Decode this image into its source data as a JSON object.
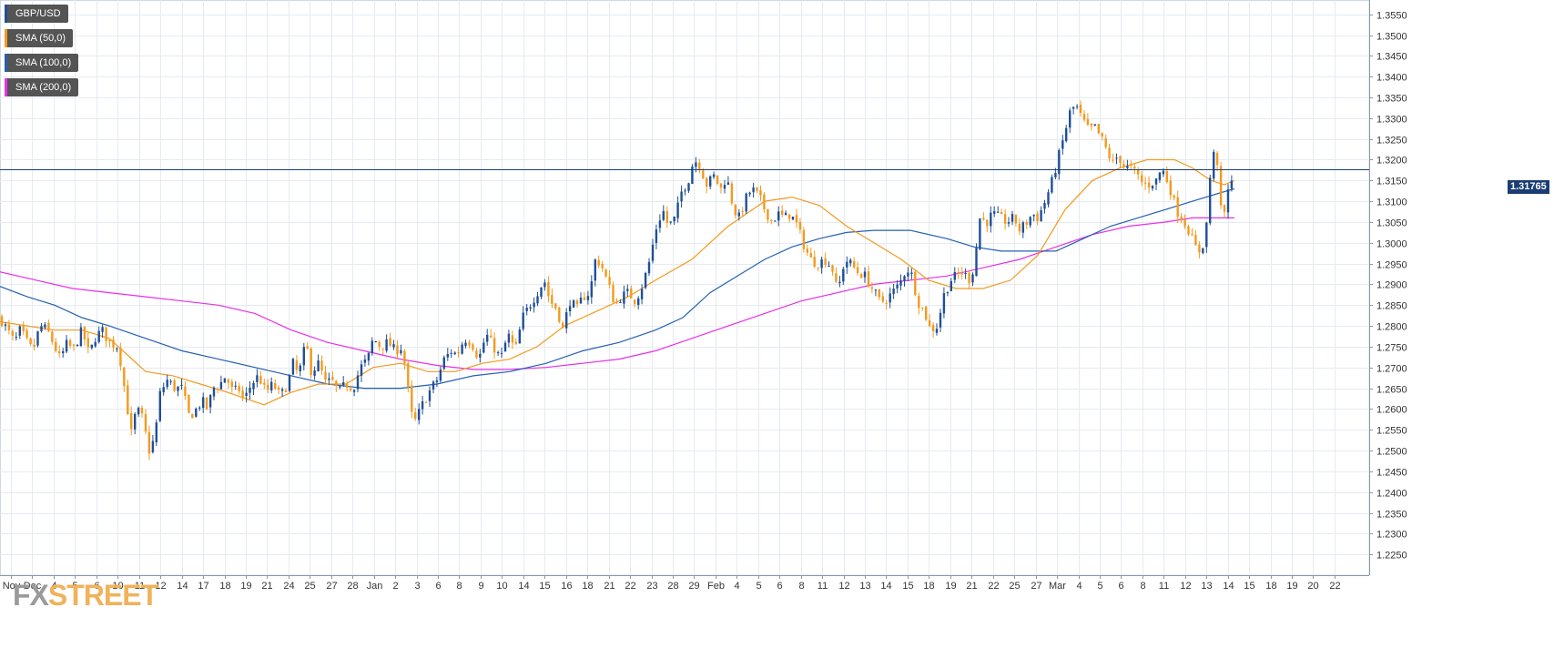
{
  "chart_data": {
    "type": "candlestick",
    "symbol": "GBP/USD",
    "last_price": "1.31765",
    "last_price_value": 1.31765,
    "ylim": [
      1.22,
      1.358
    ],
    "y_ticks": [
      "1.3550",
      "1.3500",
      "1.3450",
      "1.3400",
      "1.3350",
      "1.3300",
      "1.3250",
      "1.3200",
      "1.3150",
      "1.3100",
      "1.3050",
      "1.3000",
      "1.2950",
      "1.2900",
      "1.2850",
      "1.2800",
      "1.2750",
      "1.2700",
      "1.2650",
      "1.2600",
      "1.2550",
      "1.2500",
      "1.2450",
      "1.2400",
      "1.2350",
      "1.2300",
      "1.2250"
    ],
    "x_ticks": [
      "Nov",
      "Dec",
      "4",
      "5",
      "6",
      "10",
      "11",
      "12",
      "14",
      "17",
      "18",
      "19",
      "21",
      "24",
      "25",
      "27",
      "28",
      "Jan",
      "2",
      "3",
      "6",
      "8",
      "9",
      "10",
      "14",
      "15",
      "16",
      "18",
      "21",
      "22",
      "23",
      "28",
      "29",
      "Feb",
      "4",
      "5",
      "6",
      "8",
      "11",
      "12",
      "13",
      "14",
      "15",
      "18",
      "19",
      "21",
      "22",
      "25",
      "27",
      "Mar",
      "4",
      "5",
      "6",
      "8",
      "11",
      "12",
      "13",
      "14",
      "15",
      "18",
      "19",
      "20",
      "22"
    ],
    "grid": true,
    "legend_position": "top-left",
    "series": [
      {
        "name": "GBP/USD",
        "color": "#1f4f99"
      },
      {
        "name": "SMA (50,0)",
        "color": "#f39a1e"
      },
      {
        "name": "SMA (100,0)",
        "color": "#2360b0"
      },
      {
        "name": "SMA (200,0)",
        "color": "#e830e8"
      }
    ],
    "close_path": [
      [
        0,
        1.282
      ],
      [
        8,
        1.279
      ],
      [
        16,
        1.276
      ],
      [
        22,
        1.279
      ],
      [
        30,
        1.276
      ],
      [
        36,
        1.274
      ],
      [
        44,
        1.28
      ],
      [
        52,
        1.279
      ],
      [
        58,
        1.276
      ],
      [
        66,
        1.272
      ],
      [
        74,
        1.276
      ],
      [
        80,
        1.274
      ],
      [
        90,
        1.279
      ],
      [
        98,
        1.273
      ],
      [
        104,
        1.277
      ],
      [
        112,
        1.279
      ],
      [
        120,
        1.276
      ],
      [
        130,
        1.275
      ],
      [
        138,
        1.263
      ],
      [
        144,
        1.254
      ],
      [
        150,
        1.26
      ],
      [
        156,
        1.258
      ],
      [
        164,
        1.25
      ],
      [
        170,
        1.253
      ],
      [
        176,
        1.264
      ],
      [
        184,
        1.267
      ],
      [
        192,
        1.265
      ],
      [
        200,
        1.265
      ],
      [
        208,
        1.258
      ],
      [
        216,
        1.26
      ],
      [
        222,
        1.262
      ],
      [
        228,
        1.26
      ],
      [
        234,
        1.265
      ],
      [
        242,
        1.266
      ],
      [
        248,
        1.268
      ],
      [
        256,
        1.264
      ],
      [
        262,
        1.265
      ],
      [
        268,
        1.262
      ],
      [
        276,
        1.266
      ],
      [
        284,
        1.268
      ],
      [
        292,
        1.264
      ],
      [
        300,
        1.266
      ],
      [
        308,
        1.263
      ],
      [
        316,
        1.266
      ],
      [
        322,
        1.271
      ],
      [
        328,
        1.268
      ],
      [
        336,
        1.276
      ],
      [
        342,
        1.269
      ],
      [
        350,
        1.271
      ],
      [
        358,
        1.266
      ],
      [
        364,
        1.267
      ],
      [
        372,
        1.264
      ],
      [
        380,
        1.266
      ],
      [
        388,
        1.265
      ],
      [
        396,
        1.27
      ],
      [
        404,
        1.272
      ],
      [
        410,
        1.277
      ],
      [
        418,
        1.275
      ],
      [
        426,
        1.276
      ],
      [
        434,
        1.274
      ],
      [
        442,
        1.275
      ],
      [
        448,
        1.265
      ],
      [
        454,
        1.256
      ],
      [
        460,
        1.259
      ],
      [
        466,
        1.262
      ],
      [
        474,
        1.265
      ],
      [
        480,
        1.267
      ],
      [
        488,
        1.272
      ],
      [
        496,
        1.274
      ],
      [
        502,
        1.273
      ],
      [
        510,
        1.277
      ],
      [
        518,
        1.276
      ],
      [
        526,
        1.272
      ],
      [
        534,
        1.278
      ],
      [
        542,
        1.275
      ],
      [
        550,
        1.272
      ],
      [
        558,
        1.278
      ],
      [
        566,
        1.274
      ],
      [
        574,
        1.282
      ],
      [
        582,
        1.285
      ],
      [
        590,
        1.288
      ],
      [
        598,
        1.291
      ],
      [
        604,
        1.286
      ],
      [
        612,
        1.284
      ],
      [
        618,
        1.279
      ],
      [
        626,
        1.286
      ],
      [
        634,
        1.284
      ],
      [
        640,
        1.287
      ],
      [
        648,
        1.288
      ],
      [
        654,
        1.296
      ],
      [
        660,
        1.295
      ],
      [
        668,
        1.29
      ],
      [
        676,
        1.285
      ],
      [
        682,
        1.287
      ],
      [
        690,
        1.288
      ],
      [
        698,
        1.286
      ],
      [
        706,
        1.29
      ],
      [
        714,
        1.296
      ],
      [
        720,
        1.303
      ],
      [
        728,
        1.308
      ],
      [
        734,
        1.304
      ],
      [
        742,
        1.306
      ],
      [
        748,
        1.312
      ],
      [
        756,
        1.315
      ],
      [
        762,
        1.32
      ],
      [
        768,
        1.319
      ],
      [
        776,
        1.314
      ],
      [
        784,
        1.316
      ],
      [
        792,
        1.313
      ],
      [
        798,
        1.316
      ],
      [
        806,
        1.308
      ],
      [
        812,
        1.306
      ],
      [
        820,
        1.311
      ],
      [
        826,
        1.313
      ],
      [
        834,
        1.311
      ],
      [
        840,
        1.308
      ],
      [
        848,
        1.305
      ],
      [
        854,
        1.307
      ],
      [
        862,
        1.306
      ],
      [
        868,
        1.307
      ],
      [
        876,
        1.304
      ],
      [
        882,
        1.3
      ],
      [
        890,
        1.296
      ],
      [
        898,
        1.295
      ],
      [
        906,
        1.296
      ],
      [
        914,
        1.294
      ],
      [
        920,
        1.288
      ],
      [
        928,
        1.296
      ],
      [
        934,
        1.295
      ],
      [
        942,
        1.293
      ],
      [
        950,
        1.292
      ],
      [
        958,
        1.289
      ],
      [
        966,
        1.286
      ],
      [
        972,
        1.286
      ],
      [
        980,
        1.288
      ],
      [
        988,
        1.29
      ],
      [
        996,
        1.294
      ],
      [
        1002,
        1.292
      ],
      [
        1008,
        1.286
      ],
      [
        1016,
        1.283
      ],
      [
        1022,
        1.279
      ],
      [
        1030,
        1.28
      ],
      [
        1036,
        1.287
      ],
      [
        1044,
        1.291
      ],
      [
        1050,
        1.292
      ],
      [
        1058,
        1.293
      ],
      [
        1064,
        1.291
      ],
      [
        1070,
        1.294
      ],
      [
        1076,
        1.306
      ],
      [
        1084,
        1.305
      ],
      [
        1090,
        1.307
      ],
      [
        1098,
        1.306
      ],
      [
        1106,
        1.305
      ],
      [
        1114,
        1.306
      ],
      [
        1120,
        1.303
      ],
      [
        1128,
        1.305
      ],
      [
        1134,
        1.307
      ],
      [
        1140,
        1.306
      ],
      [
        1148,
        1.31
      ],
      [
        1156,
        1.315
      ],
      [
        1162,
        1.32
      ],
      [
        1168,
        1.325
      ],
      [
        1176,
        1.332
      ],
      [
        1182,
        1.333
      ],
      [
        1188,
        1.33
      ],
      [
        1196,
        1.327
      ],
      [
        1202,
        1.328
      ],
      [
        1210,
        1.325
      ],
      [
        1216,
        1.322
      ],
      [
        1222,
        1.319
      ],
      [
        1228,
        1.321
      ],
      [
        1236,
        1.318
      ],
      [
        1242,
        1.318
      ],
      [
        1250,
        1.316
      ],
      [
        1256,
        1.314
      ],
      [
        1262,
        1.314
      ],
      [
        1270,
        1.315
      ],
      [
        1276,
        1.318
      ],
      [
        1284,
        1.314
      ],
      [
        1292,
        1.308
      ],
      [
        1298,
        1.306
      ],
      [
        1306,
        1.303
      ],
      [
        1312,
        1.299
      ],
      [
        1318,
        1.298
      ],
      [
        1324,
        1.301
      ],
      [
        1330,
        1.318
      ],
      [
        1336,
        1.324
      ],
      [
        1340,
        1.308
      ],
      [
        1346,
        1.307
      ],
      [
        1350,
        1.314
      ],
      [
        1356,
        1.318
      ]
    ],
    "sma50_path": [
      [
        0,
        1.281
      ],
      [
        30,
        1.28
      ],
      [
        60,
        1.279
      ],
      [
        90,
        1.279
      ],
      [
        120,
        1.277
      ],
      [
        140,
        1.273
      ],
      [
        160,
        1.269
      ],
      [
        190,
        1.268
      ],
      [
        220,
        1.266
      ],
      [
        250,
        1.264
      ],
      [
        290,
        1.261
      ],
      [
        320,
        1.264
      ],
      [
        350,
        1.266
      ],
      [
        380,
        1.266
      ],
      [
        410,
        1.27
      ],
      [
        440,
        1.271
      ],
      [
        470,
        1.269
      ],
      [
        500,
        1.269
      ],
      [
        530,
        1.271
      ],
      [
        560,
        1.272
      ],
      [
        590,
        1.275
      ],
      [
        620,
        1.28
      ],
      [
        650,
        1.283
      ],
      [
        690,
        1.287
      ],
      [
        720,
        1.291
      ],
      [
        760,
        1.296
      ],
      [
        800,
        1.304
      ],
      [
        840,
        1.31
      ],
      [
        870,
        1.311
      ],
      [
        900,
        1.309
      ],
      [
        930,
        1.304
      ],
      [
        960,
        1.3
      ],
      [
        990,
        1.296
      ],
      [
        1020,
        1.291
      ],
      [
        1050,
        1.289
      ],
      [
        1080,
        1.289
      ],
      [
        1110,
        1.291
      ],
      [
        1140,
        1.297
      ],
      [
        1170,
        1.308
      ],
      [
        1200,
        1.315
      ],
      [
        1230,
        1.318
      ],
      [
        1260,
        1.32
      ],
      [
        1290,
        1.32
      ],
      [
        1310,
        1.318
      ],
      [
        1330,
        1.315
      ],
      [
        1345,
        1.314
      ],
      [
        1356,
        1.315
      ]
    ],
    "sma100_path": [
      [
        0,
        1.2895
      ],
      [
        30,
        1.287
      ],
      [
        60,
        1.285
      ],
      [
        90,
        1.282
      ],
      [
        120,
        1.28
      ],
      [
        160,
        1.277
      ],
      [
        200,
        1.274
      ],
      [
        240,
        1.272
      ],
      [
        280,
        1.27
      ],
      [
        320,
        1.268
      ],
      [
        360,
        1.266
      ],
      [
        400,
        1.265
      ],
      [
        440,
        1.265
      ],
      [
        480,
        1.266
      ],
      [
        520,
        1.268
      ],
      [
        560,
        1.269
      ],
      [
        600,
        1.271
      ],
      [
        640,
        1.274
      ],
      [
        680,
        1.276
      ],
      [
        720,
        1.279
      ],
      [
        750,
        1.282
      ],
      [
        780,
        1.288
      ],
      [
        810,
        1.292
      ],
      [
        840,
        1.296
      ],
      [
        870,
        1.299
      ],
      [
        900,
        1.301
      ],
      [
        930,
        1.3025
      ],
      [
        960,
        1.303
      ],
      [
        1000,
        1.303
      ],
      [
        1040,
        1.301
      ],
      [
        1070,
        1.299
      ],
      [
        1100,
        1.298
      ],
      [
        1130,
        1.298
      ],
      [
        1160,
        1.298
      ],
      [
        1190,
        1.301
      ],
      [
        1220,
        1.304
      ],
      [
        1250,
        1.306
      ],
      [
        1280,
        1.308
      ],
      [
        1310,
        1.31
      ],
      [
        1340,
        1.312
      ],
      [
        1356,
        1.313
      ]
    ],
    "sma200_path": [
      [
        0,
        1.293
      ],
      [
        40,
        1.291
      ],
      [
        80,
        1.289
      ],
      [
        120,
        1.288
      ],
      [
        160,
        1.287
      ],
      [
        200,
        1.286
      ],
      [
        240,
        1.285
      ],
      [
        280,
        1.283
      ],
      [
        320,
        1.279
      ],
      [
        360,
        1.276
      ],
      [
        400,
        1.274
      ],
      [
        440,
        1.272
      ],
      [
        480,
        1.2705
      ],
      [
        520,
        1.2695
      ],
      [
        560,
        1.2695
      ],
      [
        600,
        1.27
      ],
      [
        640,
        1.271
      ],
      [
        680,
        1.272
      ],
      [
        720,
        1.274
      ],
      [
        760,
        1.277
      ],
      [
        800,
        1.28
      ],
      [
        840,
        1.283
      ],
      [
        880,
        1.286
      ],
      [
        920,
        1.288
      ],
      [
        960,
        1.29
      ],
      [
        1000,
        1.291
      ],
      [
        1040,
        1.292
      ],
      [
        1080,
        1.294
      ],
      [
        1120,
        1.296
      ],
      [
        1160,
        1.299
      ],
      [
        1200,
        1.302
      ],
      [
        1240,
        1.304
      ],
      [
        1280,
        1.305
      ],
      [
        1310,
        1.306
      ],
      [
        1330,
        1.306
      ],
      [
        1356,
        1.306
      ]
    ]
  },
  "watermark": {
    "fx": "FX",
    "street": "STREET"
  }
}
